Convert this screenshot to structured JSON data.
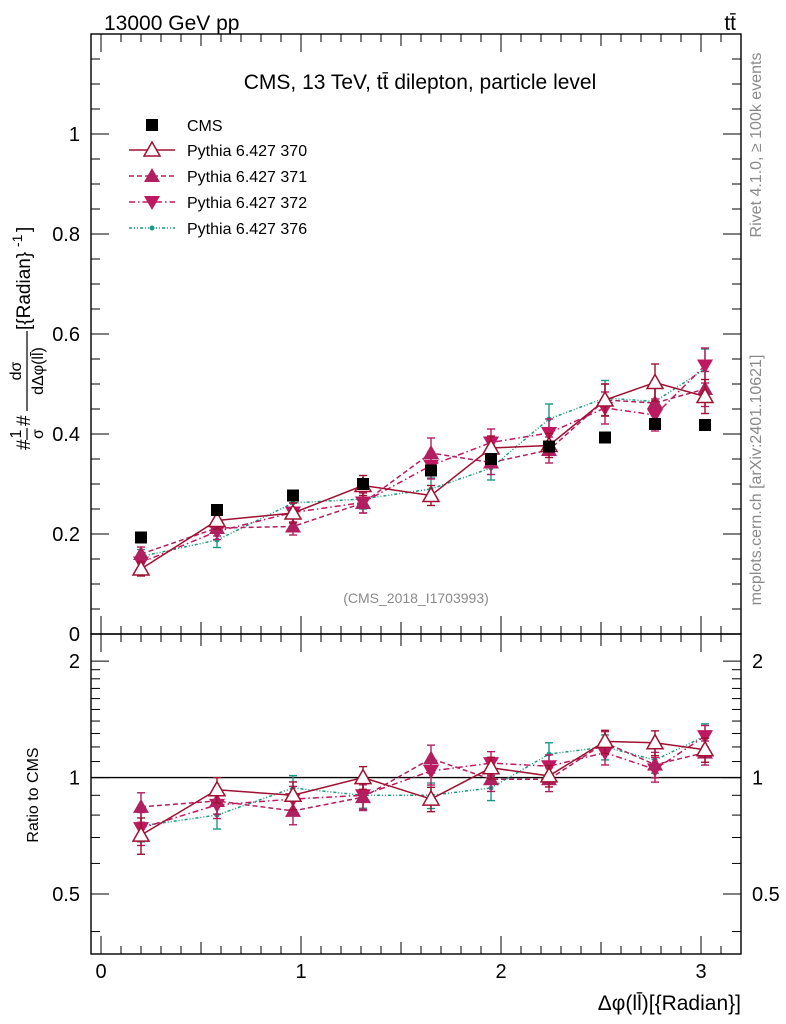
{
  "header": {
    "left": "13000 GeV pp",
    "right": "tt̄"
  },
  "side": {
    "rivet": "Rivet 4.1.0, ≥ 100k events",
    "mcplots": "mcplots.cern.ch [arXiv:2401.10621]"
  },
  "chart_data": {
    "type": "line",
    "title": "CMS, 13 TeV, tt̄ dilepton, particle level",
    "watermark": "(CMS_2018_I1703993)",
    "ylabel": "#1/σ# dσ/dΔφ(ll̄)[{Radian}⁻¹]",
    "ylabel_prefix": "#",
    "ylabel_frac1_num": "1",
    "ylabel_frac1_den": "σ",
    "ylabel_mid": "#",
    "ylabel_frac2_num": "dσ",
    "ylabel_frac2_den": "dΔφ(ll̄)",
    "ylabel_suffix": "[{Radian}",
    "ylabel_exp": "-1",
    "ylabel_end": "]",
    "xlabel": "Δφ(ll̄)[{Radian}]",
    "ratio_ylabel": "Ratio to CMS",
    "xlim": [
      -0.05,
      3.2
    ],
    "ylim": [
      0,
      1.2
    ],
    "ratio_ylim": [
      0.35,
      2.35
    ],
    "x_ticks": [
      "0",
      "1",
      "2",
      "3"
    ],
    "y_ticks": [
      "0",
      "0.2",
      "0.4",
      "0.6",
      "0.8",
      "1"
    ],
    "ratio_ticks": [
      "0.5",
      "1",
      "2"
    ],
    "x": [
      0.2,
      0.58,
      0.96,
      1.31,
      1.65,
      1.95,
      2.24,
      2.52,
      2.77,
      3.02
    ],
    "data": {
      "name": "CMS",
      "values": [
        0.193,
        0.248,
        0.277,
        0.3,
        0.327,
        0.35,
        0.375,
        0.393,
        0.42,
        0.418
      ]
    },
    "series": [
      {
        "name": "Pythia 6.427 370",
        "color": "#a01030",
        "style": "solid",
        "marker": "triangle-up-open",
        "values": [
          0.13,
          0.227,
          0.242,
          0.297,
          0.277,
          0.372,
          0.377,
          0.468,
          0.503,
          0.475
        ],
        "errors": [
          0.014,
          0.017,
          0.02,
          0.02,
          0.02,
          0.024,
          0.024,
          0.032,
          0.037,
          0.034
        ],
        "ratio": [
          0.71,
          0.93,
          0.9,
          1.0,
          0.88,
          1.06,
          1.01,
          1.24,
          1.23,
          1.18
        ]
      },
      {
        "name": "Pythia 6.427 371",
        "color": "#b02060",
        "style": "dashed",
        "marker": "triangle-up",
        "values": [
          0.16,
          0.212,
          0.215,
          0.262,
          0.362,
          0.343,
          0.368,
          0.468,
          0.462,
          0.49
        ],
        "errors": [
          0.014,
          0.016,
          0.017,
          0.02,
          0.03,
          0.024,
          0.026,
          0.032,
          0.035,
          0.035
        ],
        "ratio": [
          0.84,
          0.87,
          0.82,
          0.89,
          1.12,
          0.99,
          0.99,
          1.23,
          1.08,
          1.16
        ]
      },
      {
        "name": "Pythia 6.427 372",
        "color": "#c01860",
        "style": "dashdot",
        "marker": "triangle-down",
        "values": [
          0.143,
          0.205,
          0.243,
          0.263,
          0.337,
          0.383,
          0.402,
          0.452,
          0.438,
          0.537
        ],
        "errors": [
          0.014,
          0.016,
          0.019,
          0.021,
          0.027,
          0.027,
          0.028,
          0.032,
          0.032,
          0.035
        ],
        "ratio": [
          0.74,
          0.85,
          0.88,
          0.9,
          1.04,
          1.09,
          1.07,
          1.16,
          1.05,
          1.28
        ]
      },
      {
        "name": "Pythia 6.427 376",
        "color": "#1a9a80",
        "style": "dashdotdot",
        "marker": "dot",
        "values": [
          0.155,
          0.188,
          0.262,
          0.27,
          0.29,
          0.332,
          0.43,
          0.472,
          0.465,
          0.53
        ],
        "errors": [
          0.014,
          0.015,
          0.02,
          0.02,
          0.022,
          0.024,
          0.03,
          0.035,
          0.035,
          0.04
        ],
        "ratio": [
          0.75,
          0.8,
          0.94,
          0.9,
          0.9,
          0.94,
          1.15,
          1.2,
          1.11,
          1.28
        ]
      }
    ]
  }
}
